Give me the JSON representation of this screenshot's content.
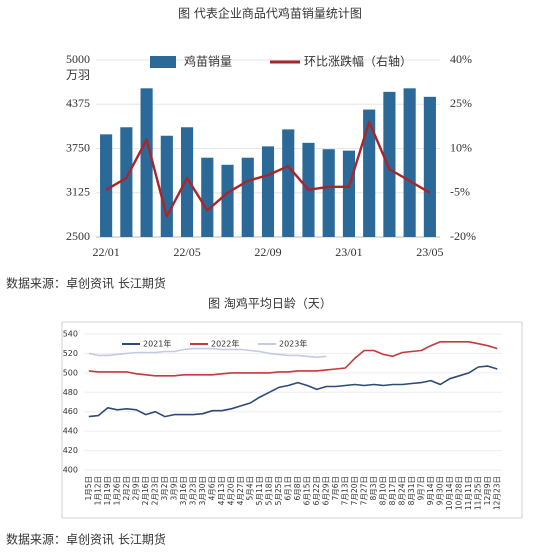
{
  "chart_data": [
    {
      "type": "combo",
      "title": "图  代表企业商品代鸡苗销量统计图",
      "y_unit": "万羽",
      "categories": [
        "22/01",
        null,
        null,
        null,
        "22/05",
        null,
        null,
        null,
        "22/09",
        null,
        null,
        null,
        "23/01",
        null,
        null,
        null,
        "23/05"
      ],
      "series": [
        {
          "name": "鸡苗销量",
          "type": "bar",
          "color": "#2b6a98",
          "values": [
            3950,
            4050,
            4600,
            3930,
            4050,
            3620,
            3520,
            3620,
            3780,
            4020,
            3830,
            3740,
            3720,
            4300,
            4550,
            4600,
            4480
          ]
        },
        {
          "name": "环比涨跌幅（右轴）",
          "type": "line",
          "color": "#a8262b",
          "axis": "y2",
          "values": [
            -4,
            0,
            13,
            -13,
            0,
            -11,
            -5,
            -1,
            1,
            4,
            -4,
            -3,
            -3,
            19,
            3,
            -1,
            -5
          ]
        }
      ],
      "ylim": [
        2500,
        5000
      ],
      "yticks": [
        2500,
        3125,
        3750,
        4375,
        5000
      ],
      "y2lim": [
        -20,
        40
      ],
      "y2ticks": [
        {
          "value": -20,
          "label": "-20%"
        },
        {
          "value": -5,
          "label": "-5%"
        },
        {
          "value": 10,
          "label": "10%"
        },
        {
          "value": 25,
          "label": "25%"
        },
        {
          "value": 40,
          "label": "40%"
        }
      ],
      "grid": true,
      "source": "数据来源：卓创资讯  长江期货"
    },
    {
      "type": "line",
      "title": "图  淘鸡平均日龄（天）",
      "categories": [
        "1月5日",
        "1月12日",
        "1月19日",
        "1月26日",
        "2月2日",
        "2月9日",
        "2月16日",
        "2月23日",
        "3月2日",
        "3月9日",
        "3月16日",
        "3月23日",
        "3月30日",
        "4月6日",
        "4月13日",
        "4月20日",
        "4月27日",
        "5月4日",
        "5月11日",
        "5月18日",
        "5月25日",
        "6月1日",
        "6月8日",
        "6月15日",
        "6月22日",
        "6月29日",
        "7月6日",
        "7月13日",
        "7月20日",
        "7月27日",
        "8月3日",
        "8月10日",
        "8月17日",
        "8月24日",
        "8月31日",
        "9月7日",
        "9月14日",
        "9月30日",
        "10月14日",
        "10月28日",
        "11月11日",
        "11月25日",
        "12月9日",
        "12月23日"
      ],
      "series": [
        {
          "name": "2021年",
          "color": "#2e4a7a",
          "values": [
            455,
            456,
            464,
            462,
            463,
            462,
            457,
            460,
            455,
            457,
            457,
            457,
            458,
            461,
            461,
            463,
            466,
            469,
            475,
            480,
            485,
            487,
            490,
            487,
            483,
            486,
            486,
            487,
            488,
            487,
            488,
            487,
            488,
            488,
            489,
            490,
            492,
            488,
            494,
            497,
            500,
            506,
            507,
            504
          ]
        },
        {
          "name": "2022年",
          "color": "#c23a3c",
          "values": [
            502,
            501,
            501,
            501,
            501,
            499,
            498,
            497,
            497,
            497,
            498,
            498,
            498,
            498,
            499,
            500,
            500,
            500,
            500,
            500,
            501,
            501,
            502,
            502,
            502,
            503,
            504,
            505,
            515,
            523,
            523,
            519,
            517,
            521,
            522,
            523,
            528,
            532,
            532,
            532,
            532,
            530,
            528,
            525
          ]
        },
        {
          "name": "2023年",
          "color": "#c5c9e8",
          "values": [
            520,
            518,
            518,
            519,
            520,
            521,
            521,
            521,
            522,
            522,
            524,
            525,
            525,
            525,
            524,
            524,
            524,
            523,
            522,
            520,
            519,
            518,
            518,
            517,
            516,
            517,
            null,
            null,
            null,
            null,
            null,
            null,
            null,
            null,
            null,
            null,
            null,
            null,
            null,
            null,
            null,
            null,
            null,
            null
          ]
        }
      ],
      "ylim": [
        400,
        540
      ],
      "yticks": [
        400,
        420,
        440,
        460,
        480,
        500,
        520,
        540
      ],
      "grid": true,
      "source": "数据来源：卓创资讯  长江期货"
    }
  ]
}
